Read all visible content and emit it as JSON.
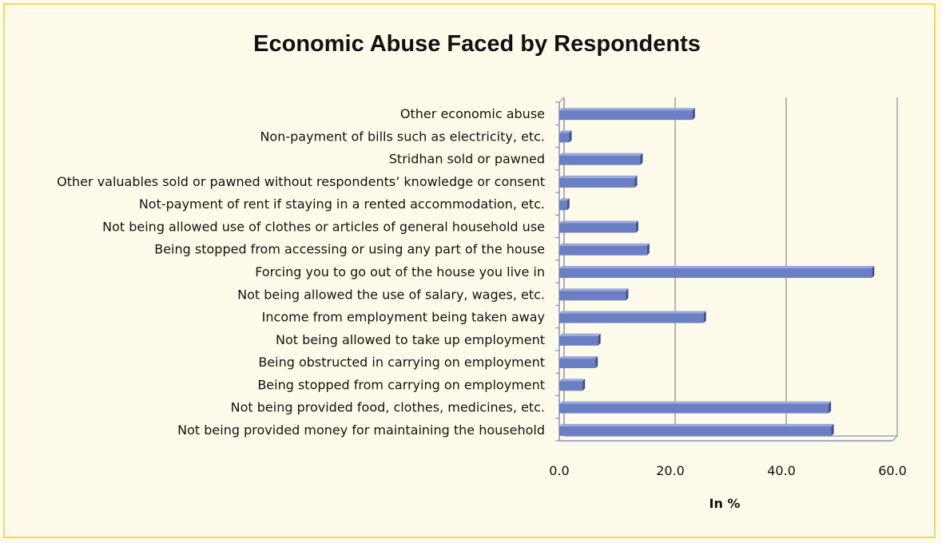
{
  "chart_data": {
    "type": "bar",
    "orientation": "horizontal",
    "title": "Economic Abuse Faced by Respondents",
    "xlabel": "In %",
    "ylabel": "",
    "xlim": [
      0,
      60
    ],
    "xticks": [
      "0.0",
      "20.0",
      "40.0",
      "60.0"
    ],
    "grid": true,
    "categories": [
      "Other economic abuse",
      "Non-payment of bills such as electricity, etc.",
      "Stridhan sold or pawned",
      "Other valuables sold or pawned without respondents’ knowledge or consent",
      "Not-payment of rent if staying in a rented accommodation, etc.",
      "Not being allowed use of clothes or articles of general household use",
      "Being stopped from accessing or using any part of the house",
      "Forcing you to go out of the house you live in",
      "Not being allowed the use of salary, wages, etc.",
      "Income from employment being taken away",
      "Not being allowed to take up employment",
      "Being obstructed in carrying on employment",
      "Being stopped from carrying on employment",
      "Not being provided food, clothes, medicines, etc.",
      "Not being provided money for maintaining the household"
    ],
    "values": [
      24.0,
      1.8,
      14.6,
      13.6,
      1.4,
      13.8,
      15.8,
      56.3,
      12.0,
      26.0,
      7.0,
      6.5,
      4.2,
      48.5,
      49.0
    ],
    "colors": {
      "bar": "#6b7fc4",
      "bar_dark": "#3e4e8e",
      "bar_top": "#9aa8dc",
      "axis": "#8892b8",
      "grid": "#8a8a8a"
    }
  }
}
